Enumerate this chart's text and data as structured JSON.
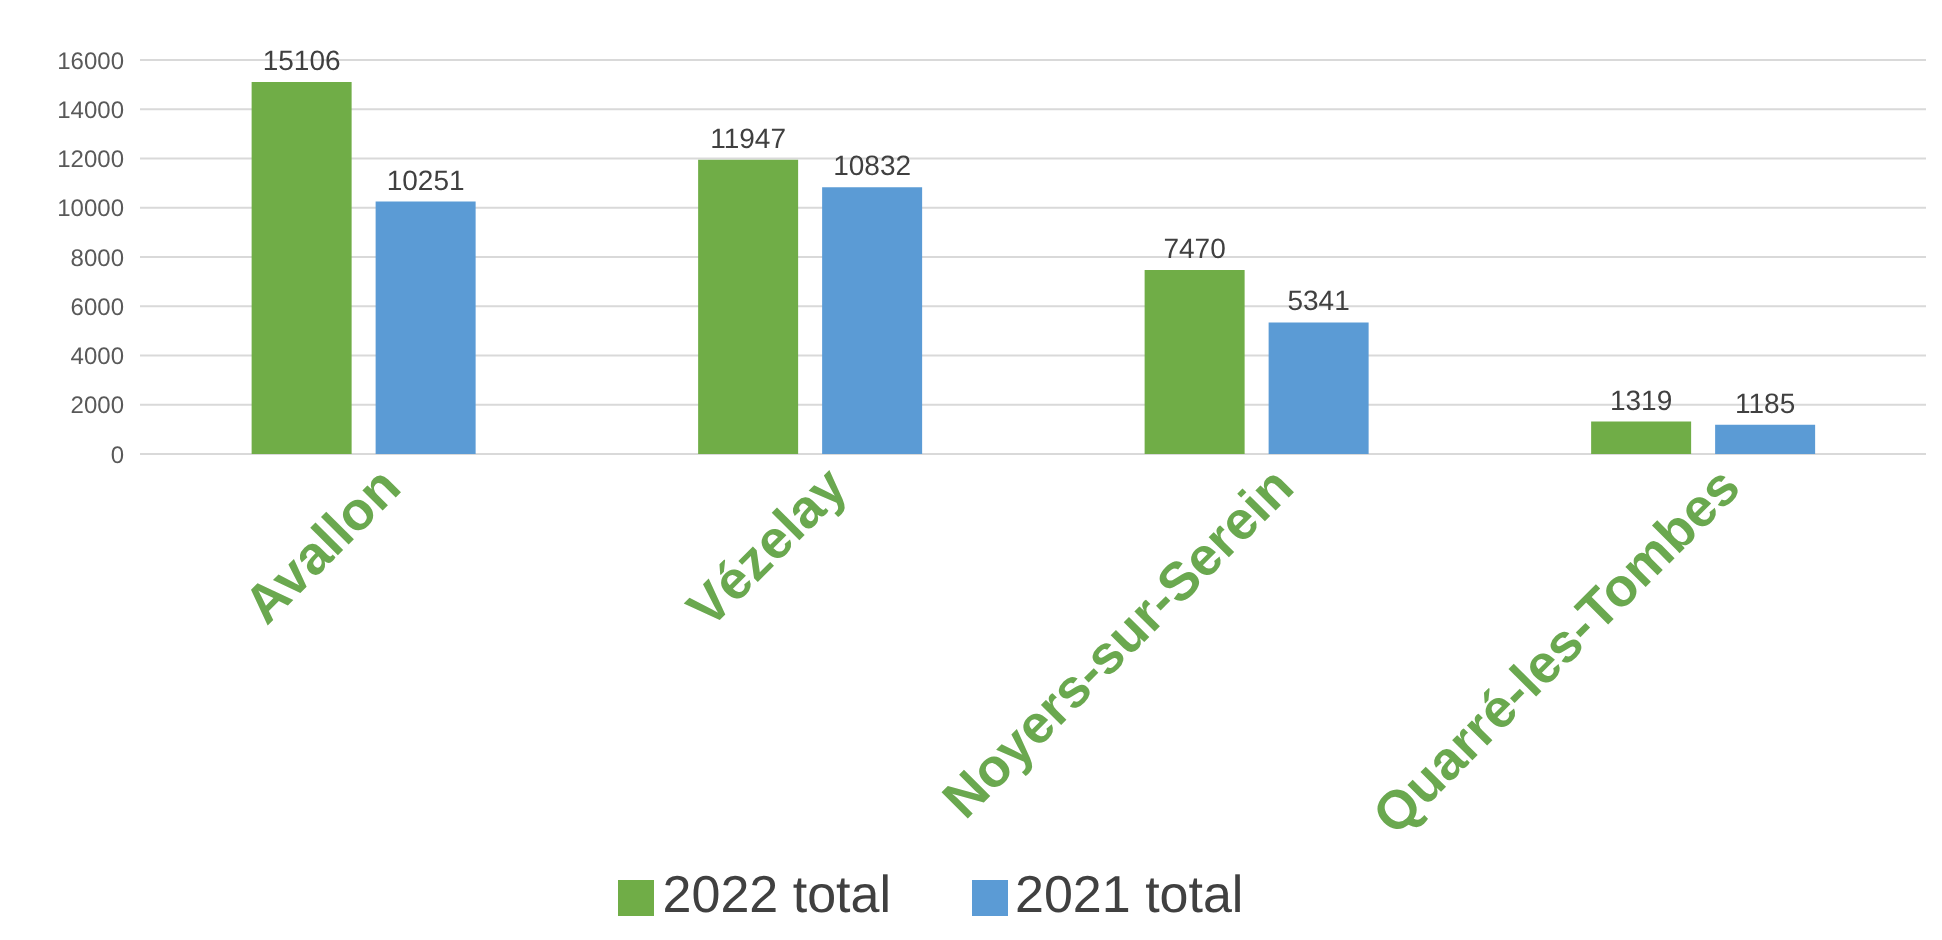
{
  "chart_data": {
    "type": "bar",
    "categories": [
      "Avallon",
      "Vézelay",
      "Noyers-sur-Serein",
      "Quarré-les-Tombes"
    ],
    "series": [
      {
        "name": "2022 total",
        "color": "#70ad47",
        "values": [
          15106,
          11947,
          7470,
          1319
        ]
      },
      {
        "name": "2021 total",
        "color": "#5b9bd5",
        "values": [
          10251,
          10832,
          5341,
          1185
        ]
      }
    ],
    "ylim": [
      0,
      16000
    ],
    "yticks": [
      0,
      2000,
      4000,
      6000,
      8000,
      10000,
      12000,
      14000,
      16000
    ],
    "grid": "y",
    "legend": "bottom",
    "data_labels": true
  }
}
